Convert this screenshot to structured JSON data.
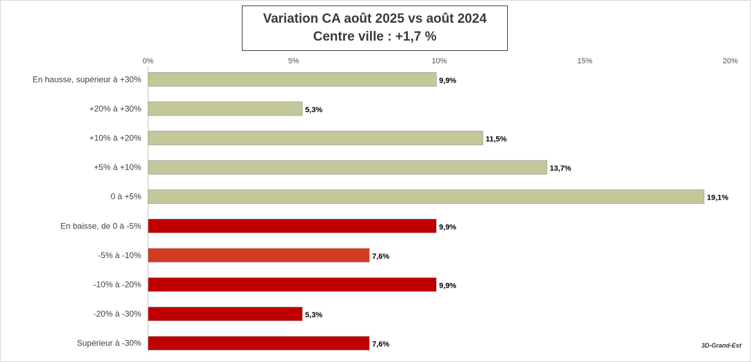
{
  "chart_data": {
    "type": "bar",
    "orientation": "horizontal",
    "title": "Variation CA août 2025 vs août 2024",
    "subtitle": "Centre ville  : +1,7 %",
    "xlim": [
      0,
      20
    ],
    "ticks": [
      "0%",
      "5%",
      "10%",
      "15%",
      "20%"
    ],
    "categories": [
      "En hausse, supérieur à +30%",
      "+20% à +30%",
      "+10% à +20%",
      "+5% à +10%",
      "0 à +5%",
      "En baisse, de 0 à -5%",
      "-5% à -10%",
      "-10% à -20%",
      "-20% à -30%",
      "Supérieur à -30%"
    ],
    "values": [
      9.9,
      5.3,
      11.5,
      13.7,
      19.1,
      9.9,
      7.6,
      9.9,
      5.3,
      7.6
    ],
    "labels": [
      "9,9%",
      "5,3%",
      "11,5%",
      "13,7%",
      "19,1%",
      "9,9%",
      "7,6%",
      "9,9%",
      "5,3%",
      "7,6%"
    ],
    "colors": [
      "#c4c79a",
      "#c4c79a",
      "#c4c79a",
      "#c4c79a",
      "#c4c79a",
      "#c00000",
      "#d23b22",
      "#c00000",
      "#c00000",
      "#c00000"
    ],
    "grid": false,
    "legend": "none"
  },
  "watermark": "3D-Grand-Est"
}
